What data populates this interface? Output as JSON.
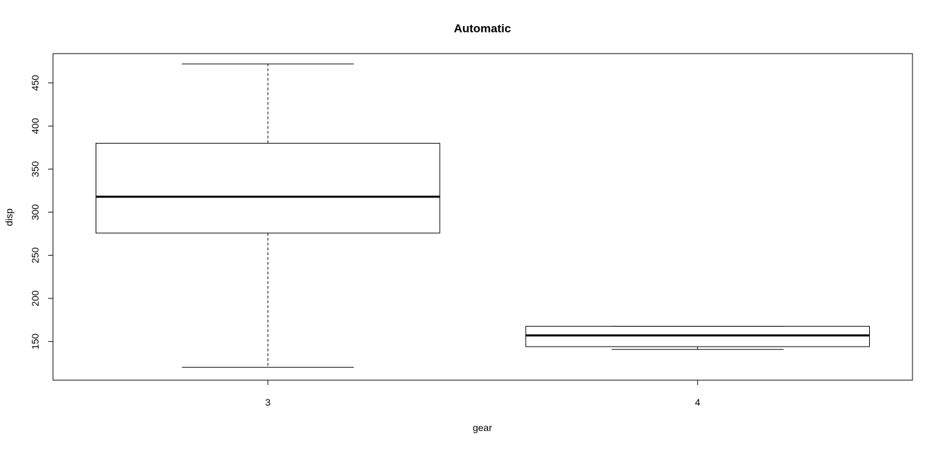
{
  "chart_data": {
    "type": "box",
    "title": "Automatic",
    "xlabel": "gear",
    "ylabel": "disp",
    "categories": [
      "3",
      "4"
    ],
    "boxes": [
      {
        "category": "3",
        "whisker_low": 120.1,
        "q1": 275.8,
        "median": 318.0,
        "q3": 380.0,
        "whisker_high": 472.0
      },
      {
        "category": "4",
        "whisker_low": 140.8,
        "q1": 144.0,
        "median": 157.0,
        "q3": 167.6,
        "whisker_high": 167.6
      }
    ],
    "yticks": [
      150,
      200,
      250,
      300,
      350,
      400,
      450
    ],
    "ytick_labels": [
      "150",
      "200",
      "250",
      "300",
      "350",
      "400",
      "450"
    ],
    "ylim": [
      105.1,
      484.0
    ],
    "grid": false,
    "legend": "none"
  }
}
